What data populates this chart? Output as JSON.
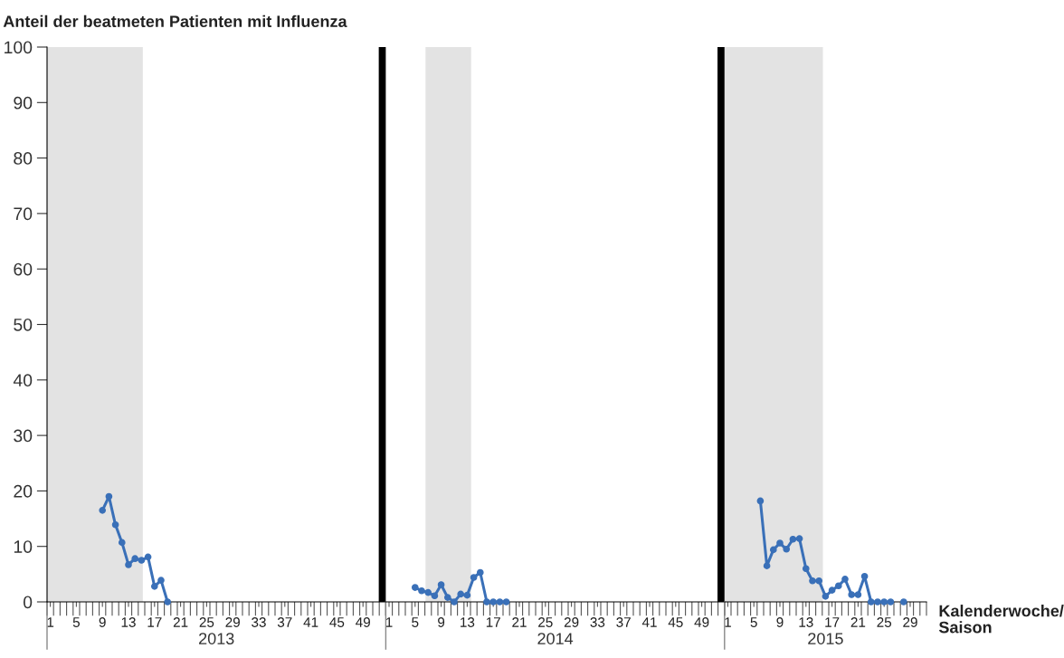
{
  "chart_data": [
    {
      "type": "line",
      "ylabel": "Anteil der beatmeten Patienten mit Influenza",
      "xlabel": "2013",
      "xlim": [
        0.5,
        52.5
      ],
      "ylim": [
        0,
        100
      ],
      "yticks": [
        0,
        10,
        20,
        30,
        40,
        50,
        60,
        70,
        80,
        90,
        100
      ],
      "xticks": [
        1,
        5,
        9,
        13,
        17,
        21,
        25,
        29,
        33,
        37,
        41,
        45,
        49
      ],
      "series": [
        {
          "color": "#3a70b8",
          "x": [
            9,
            10,
            11,
            12,
            13,
            14,
            15,
            16,
            17,
            18,
            19
          ],
          "values": [
            16.5,
            19.0,
            13.9,
            10.7,
            6.7,
            7.8,
            7.5,
            8.1,
            2.8,
            3.9,
            0
          ]
        }
      ],
      "marker": "circle",
      "line_style": "solid",
      "ref_lines": [
        {
          "axis": "x",
          "value": 52,
          "color": "#000000"
        }
      ],
      "bands": [
        {
          "axis": "x",
          "from": 0.5,
          "to": 15.2,
          "color": "#e3e3e3"
        }
      ]
    },
    {
      "type": "line",
      "xlabel": "2014",
      "tick_labels": "x",
      "xlim": [
        0.5,
        52.5
      ],
      "ylim": [
        0,
        100
      ],
      "xticks": [
        1,
        5,
        9,
        13,
        17,
        21,
        25,
        29,
        33,
        37,
        41,
        45,
        49
      ],
      "series": [
        {
          "color": "#3a70b8",
          "x": [
            5,
            6,
            7,
            8,
            9,
            10,
            11,
            12,
            13,
            14,
            15,
            16,
            17,
            18,
            19
          ],
          "values": [
            2.6,
            2.0,
            1.7,
            1.1,
            3.1,
            0.8,
            0,
            1.4,
            1.2,
            4.4,
            5.3,
            0,
            0,
            0,
            0
          ]
        }
      ],
      "marker": "circle",
      "line_style": "solid",
      "ref_lines": [
        {
          "axis": "x",
          "value": 52,
          "color": "#000000"
        }
      ],
      "bands": [
        {
          "axis": "x",
          "from": 6.6,
          "to": 13.6,
          "color": "#e3e3e3"
        }
      ]
    },
    {
      "type": "line",
      "xlabel": "2015",
      "tick_labels": "x",
      "xlim": [
        0.5,
        31.5
      ],
      "ylim": [
        0,
        100
      ],
      "xticks": [
        1,
        5,
        9,
        13,
        17,
        21,
        25,
        29
      ],
      "series": [
        {
          "color": "#3a70b8",
          "x": [
            6,
            7,
            8,
            9,
            10,
            11,
            12,
            13,
            14,
            15,
            16,
            17,
            18,
            19,
            20,
            21,
            22,
            23,
            24,
            25,
            26,
            27,
            28
          ],
          "values": [
            18.2,
            6.5,
            9.4,
            10.6,
            9.5,
            11.3,
            11.4,
            6.0,
            3.8,
            3.8,
            1.0,
            2.1,
            2.9,
            4.1,
            1.3,
            1.3,
            4.6,
            0,
            0,
            0,
            0,
            null,
            0
          ]
        }
      ],
      "marker": "circle",
      "line_style": "solid",
      "bands": [
        {
          "axis": "x",
          "from": 0.5,
          "to": 15.6,
          "color": "#e3e3e3"
        }
      ],
      "annotations": [
        "Kalenderwoche/\nSaison"
      ]
    }
  ]
}
